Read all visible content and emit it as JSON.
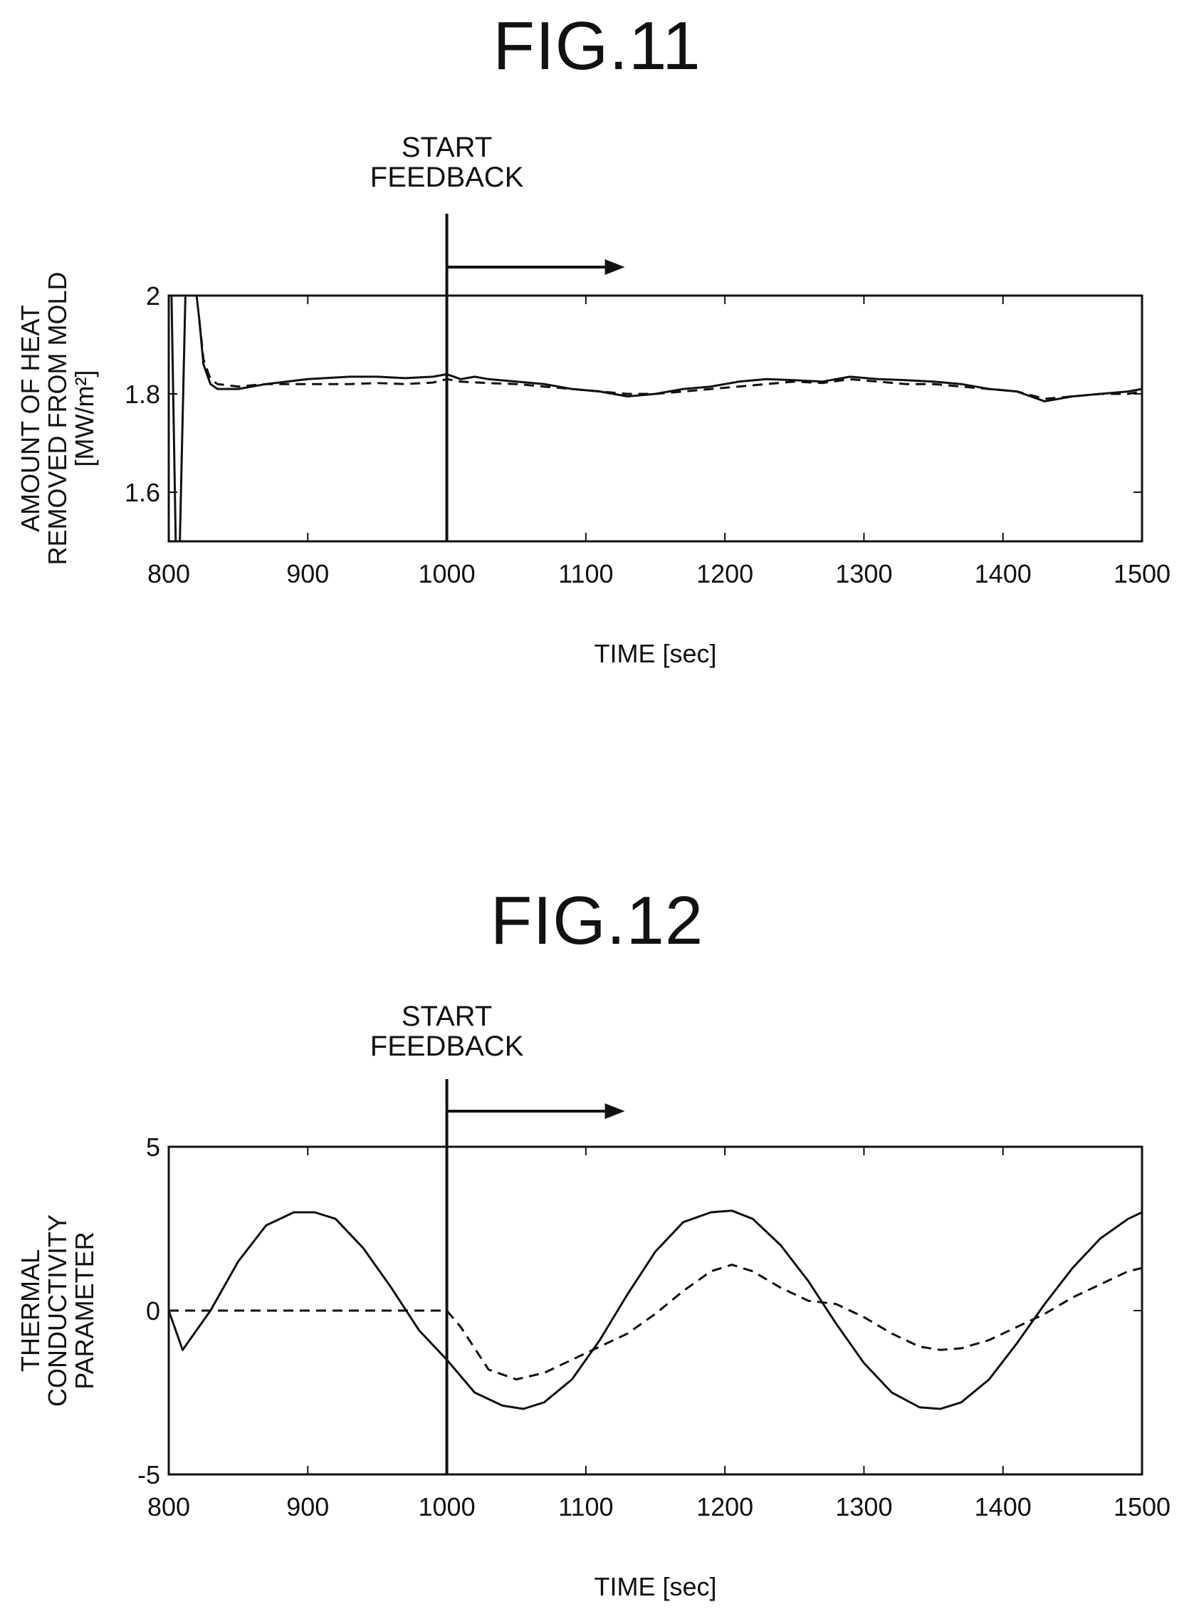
{
  "figures": [
    {
      "title": "FIG.11"
    },
    {
      "title": "FIG.12"
    }
  ],
  "chart_data": [
    {
      "type": "line",
      "title": "FIG.11",
      "xlabel": "TIME [sec]",
      "ylabel_lines": [
        "AMOUNT OF HEAT",
        "REMOVED FROM MOLD",
        "[MW/m²]"
      ],
      "xlim": [
        800,
        1500
      ],
      "ylim": [
        1.5,
        2.0
      ],
      "x_ticks": [
        800,
        900,
        1000,
        1100,
        1200,
        1300,
        1400,
        1500
      ],
      "y_ticks": [
        1.6,
        1.8,
        2
      ],
      "grid": false,
      "annotation": {
        "lines": [
          "START",
          "FEEDBACK"
        ],
        "x": 1000
      },
      "series": [
        {
          "style": "solid",
          "x": [
            802,
            805,
            808,
            810,
            812,
            814,
            818,
            820,
            822,
            825,
            830,
            835,
            850,
            870,
            900,
            930,
            950,
            970,
            990,
            1000,
            1010,
            1020,
            1030,
            1050,
            1070,
            1090,
            1110,
            1130,
            1150,
            1170,
            1190,
            1210,
            1230,
            1250,
            1270,
            1290,
            1310,
            1330,
            1350,
            1370,
            1390,
            1410,
            1430,
            1450,
            1470,
            1490,
            1500
          ],
          "y": [
            2.0,
            1.5,
            1.5,
            1.75,
            2.0,
            2.0,
            2.0,
            2.0,
            1.95,
            1.86,
            1.82,
            1.81,
            1.81,
            1.82,
            1.83,
            1.835,
            1.835,
            1.832,
            1.835,
            1.84,
            1.83,
            1.835,
            1.83,
            1.825,
            1.82,
            1.81,
            1.805,
            1.795,
            1.8,
            1.81,
            1.815,
            1.825,
            1.83,
            1.828,
            1.825,
            1.835,
            1.83,
            1.828,
            1.825,
            1.82,
            1.81,
            1.805,
            1.785,
            1.795,
            1.8,
            1.805,
            1.81
          ]
        },
        {
          "style": "dashed",
          "x": [
            822,
            825,
            830,
            835,
            850,
            870,
            900,
            930,
            950,
            970,
            990,
            1000,
            1010,
            1030,
            1050,
            1070,
            1090,
            1110,
            1130,
            1150,
            1170,
            1190,
            1210,
            1230,
            1250,
            1270,
            1290,
            1310,
            1330,
            1350,
            1370,
            1390,
            1410,
            1430,
            1450,
            1470,
            1490,
            1500
          ],
          "y": [
            1.95,
            1.87,
            1.83,
            1.82,
            1.815,
            1.82,
            1.82,
            1.82,
            1.822,
            1.82,
            1.823,
            1.83,
            1.825,
            1.822,
            1.82,
            1.815,
            1.81,
            1.805,
            1.8,
            1.8,
            1.805,
            1.81,
            1.815,
            1.82,
            1.825,
            1.822,
            1.83,
            1.825,
            1.82,
            1.82,
            1.815,
            1.81,
            1.805,
            1.79,
            1.795,
            1.8,
            1.8,
            1.805
          ]
        }
      ]
    },
    {
      "type": "line",
      "title": "FIG.12",
      "xlabel": "TIME [sec]",
      "ylabel_lines": [
        "THERMAL",
        "CONDUCTIVITY",
        "PARAMETER"
      ],
      "xlim": [
        800,
        1500
      ],
      "ylim": [
        -5,
        5
      ],
      "x_ticks": [
        800,
        900,
        1000,
        1100,
        1200,
        1300,
        1400,
        1500
      ],
      "y_ticks": [
        -5,
        0,
        5
      ],
      "grid": false,
      "annotation": {
        "lines": [
          "START",
          "FEEDBACK"
        ],
        "x": 1000
      },
      "series": [
        {
          "style": "solid",
          "x": [
            800,
            810,
            830,
            850,
            870,
            890,
            905,
            920,
            940,
            960,
            980,
            1000,
            1020,
            1040,
            1055,
            1070,
            1090,
            1110,
            1130,
            1150,
            1170,
            1190,
            1205,
            1220,
            1240,
            1260,
            1280,
            1300,
            1320,
            1340,
            1355,
            1370,
            1390,
            1410,
            1430,
            1450,
            1470,
            1490,
            1500
          ],
          "y": [
            0,
            -1.2,
            0.0,
            1.5,
            2.6,
            3.0,
            3.0,
            2.8,
            1.9,
            0.7,
            -0.6,
            -1.5,
            -2.5,
            -2.9,
            -3.0,
            -2.8,
            -2.1,
            -0.9,
            0.5,
            1.8,
            2.7,
            3.0,
            3.05,
            2.8,
            2.0,
            0.9,
            -0.4,
            -1.6,
            -2.5,
            -2.95,
            -3.0,
            -2.8,
            -2.1,
            -1.0,
            0.2,
            1.3,
            2.2,
            2.8,
            3.0
          ]
        },
        {
          "style": "dashed",
          "x": [
            800,
            900,
            1000,
            1010,
            1030,
            1050,
            1070,
            1090,
            1110,
            1130,
            1150,
            1170,
            1190,
            1205,
            1220,
            1240,
            1260,
            1280,
            1300,
            1320,
            1340,
            1355,
            1370,
            1390,
            1410,
            1430,
            1450,
            1470,
            1490,
            1500
          ],
          "y": [
            0,
            0,
            0,
            -0.5,
            -1.8,
            -2.1,
            -1.9,
            -1.5,
            -1.1,
            -0.7,
            -0.1,
            0.6,
            1.2,
            1.4,
            1.2,
            0.7,
            0.3,
            0.2,
            -0.2,
            -0.7,
            -1.1,
            -1.2,
            -1.15,
            -0.9,
            -0.5,
            -0.1,
            0.4,
            0.8,
            1.2,
            1.3
          ]
        }
      ]
    }
  ]
}
